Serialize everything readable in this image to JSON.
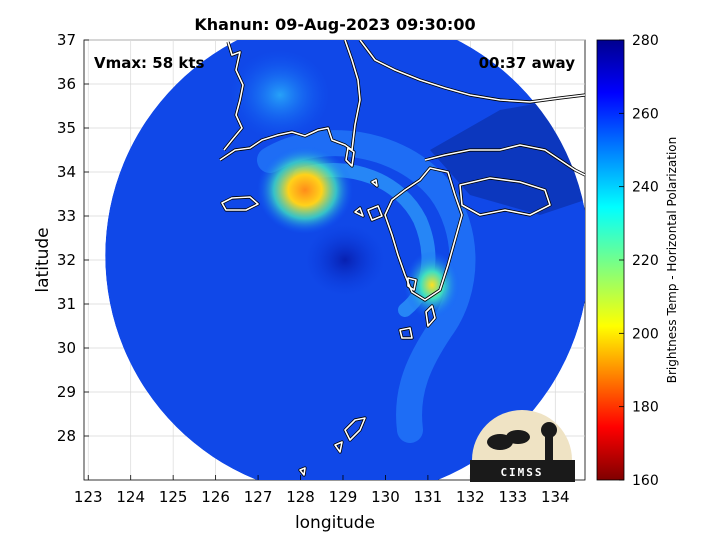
{
  "chart_data": {
    "type": "heatmap",
    "title": "Khanun: 09-Aug-2023 09:30:00",
    "xlabel": "longitude",
    "ylabel": "latitude",
    "xlim": [
      122.9,
      134.7
    ],
    "ylim": [
      27.0,
      37.0
    ],
    "xticks": [
      123,
      124,
      125,
      126,
      127,
      128,
      129,
      130,
      131,
      132,
      133,
      134
    ],
    "yticks": [
      28,
      29,
      30,
      31,
      32,
      33,
      34,
      35,
      36,
      37
    ],
    "grid": true,
    "annotations": {
      "vmax": "Vmax: 58 kts",
      "away": "00:37 away"
    },
    "colorbar": {
      "label": "Brightness Temp - Horizontal Polarization",
      "range": [
        160,
        280
      ],
      "ticks": [
        160,
        180,
        200,
        220,
        240,
        260,
        280
      ],
      "colormap": "jet"
    },
    "swath": {
      "center": [
        129.1,
        32.1
      ],
      "radius_deg": 5.7
    },
    "features": [
      {
        "name": "cold band northwest of center",
        "lon": 128.1,
        "lat": 33.7,
        "value": 198
      },
      {
        "name": "band near Kyushu coast",
        "lon": 131.1,
        "lat": 31.2,
        "value": 222
      },
      {
        "name": "eye region",
        "lon": 129.0,
        "lat": 32.1,
        "value": 268
      }
    ]
  },
  "logo": {
    "text": "CIMSS"
  }
}
